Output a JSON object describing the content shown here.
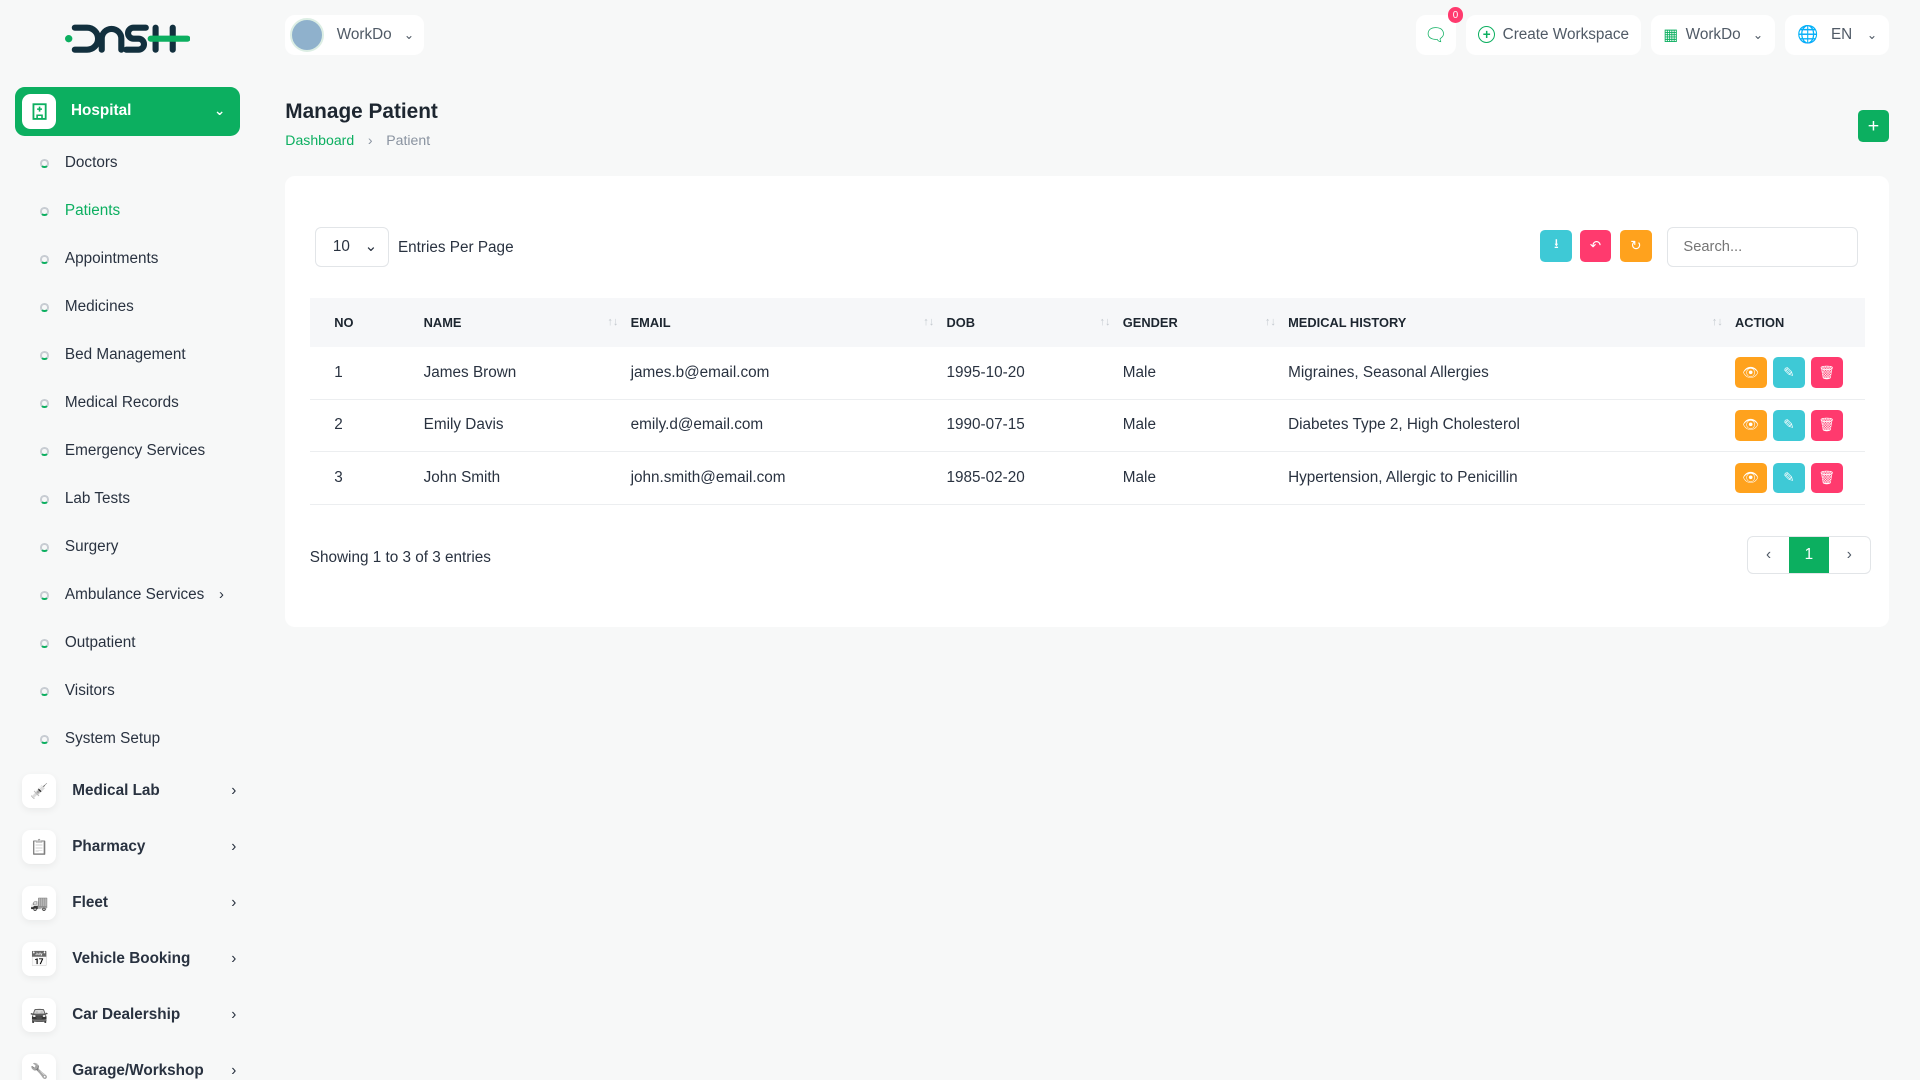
{
  "brand": {
    "logo_text": "DASH"
  },
  "header": {
    "workspace": "WorkDo",
    "notifications_count": "0",
    "create_workspace": "Create Workspace",
    "workspace_menu": "WorkDo",
    "language": "EN"
  },
  "sidebar": {
    "active_group": "Hospital",
    "sub_items": [
      {
        "label": "Doctors"
      },
      {
        "label": "Patients",
        "active": true
      },
      {
        "label": "Appointments"
      },
      {
        "label": "Medicines"
      },
      {
        "label": "Bed Management"
      },
      {
        "label": "Medical Records"
      },
      {
        "label": "Emergency Services"
      },
      {
        "label": "Lab Tests"
      },
      {
        "label": "Surgery"
      },
      {
        "label": "Ambulance Services",
        "has_children": true
      },
      {
        "label": "Outpatient"
      },
      {
        "label": "Visitors"
      },
      {
        "label": "System Setup"
      }
    ],
    "groups": [
      {
        "label": "Medical Lab",
        "icon": "syringe-icon"
      },
      {
        "label": "Pharmacy",
        "icon": "clipboard-icon"
      },
      {
        "label": "Fleet",
        "icon": "truck-icon"
      },
      {
        "label": "Vehicle Booking",
        "icon": "calendar-icon"
      },
      {
        "label": "Car Dealership",
        "icon": "car-icon"
      },
      {
        "label": "Garage/Workshop",
        "icon": "wrench-icon"
      }
    ]
  },
  "page": {
    "title": "Manage Patient",
    "breadcrumb": [
      "Dashboard",
      "Patient"
    ]
  },
  "table_controls": {
    "entries": "10",
    "entries_label": "Entries Per Page",
    "search_placeholder": "Search..."
  },
  "table": {
    "columns": [
      "NO",
      "NAME",
      "EMAIL",
      "DOB",
      "GENDER",
      "MEDICAL HISTORY",
      "ACTION"
    ],
    "rows": [
      [
        "1",
        "James Brown",
        "james.b@email.com",
        "1995-10-20",
        "Male",
        "Migraines, Seasonal Allergies"
      ],
      [
        "2",
        "Emily Davis",
        "emily.d@email.com",
        "1990-07-15",
        "Male",
        "Diabetes Type 2, High Cholesterol"
      ],
      [
        "3",
        "John Smith",
        "john.smith@email.com",
        "1985-02-20",
        "Male",
        "Hypertension, Allergic to Penicillin"
      ]
    ]
  },
  "footer": {
    "info": "Showing 1 to 3 of 3 entries",
    "current_page": "1"
  },
  "colors": {
    "primary": "#0caf60",
    "info": "#3ec9d6",
    "danger": "#ff3a6e",
    "warning": "#ffa21d"
  }
}
